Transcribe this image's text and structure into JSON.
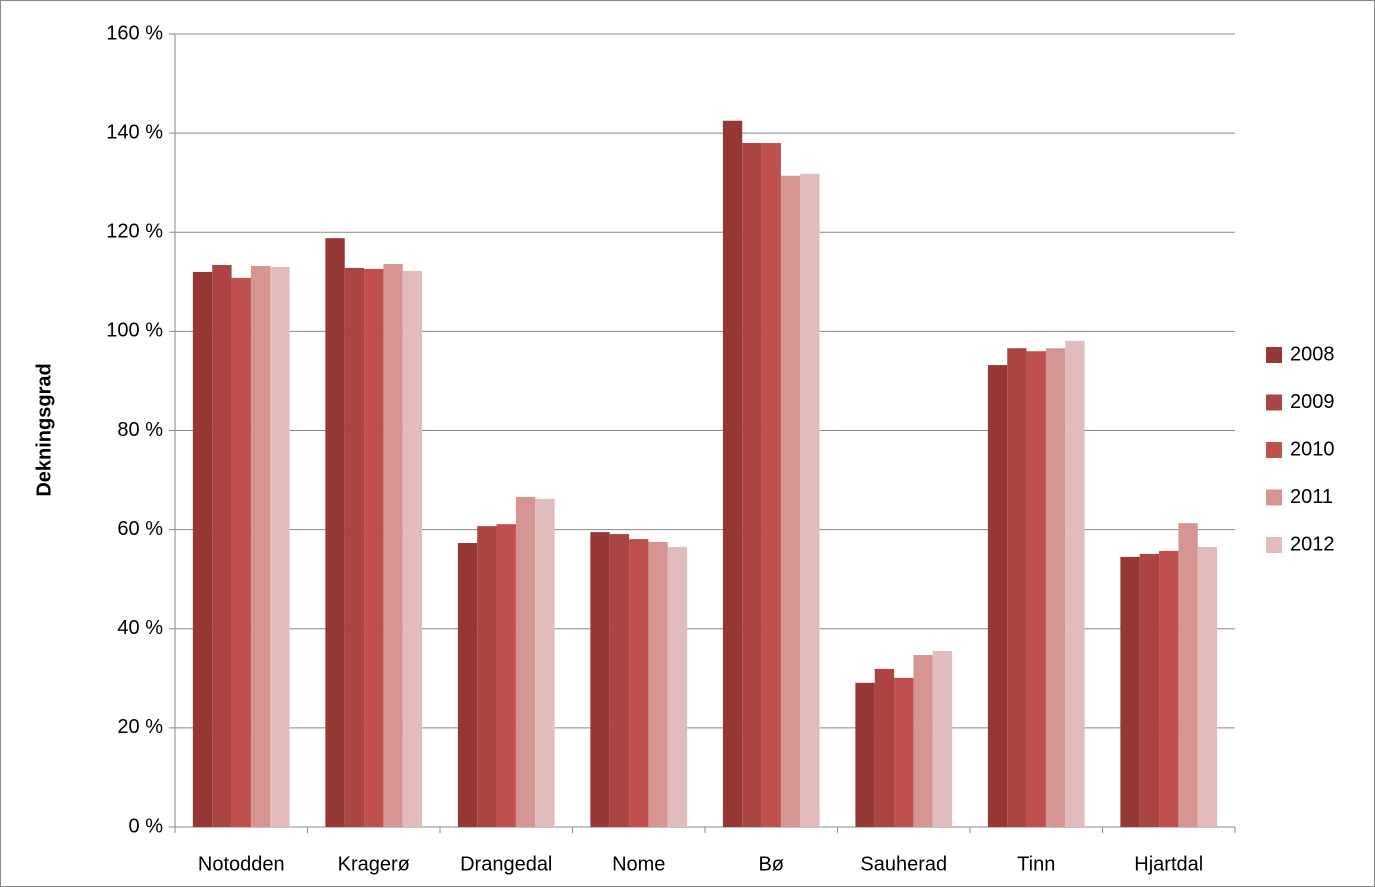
{
  "chart_data": {
    "type": "bar",
    "y_axis_label": "Dekningsgrad",
    "categories": [
      "Notodden",
      "Kragerø",
      "Drangedal",
      "Nome",
      "Bø",
      "Sauherad",
      "Tinn",
      "Hjartdal"
    ],
    "series": [
      {
        "name": "2008",
        "color": "#953735",
        "values": [
          112.0,
          118.8,
          57.3,
          59.5,
          142.5,
          29.1,
          93.2,
          54.5
        ]
      },
      {
        "name": "2009",
        "color": "#ab4543",
        "values": [
          113.4,
          112.8,
          60.7,
          59.1,
          138.0,
          31.9,
          96.6,
          55.1
        ]
      },
      {
        "name": "2010",
        "color": "#c0504d",
        "values": [
          110.8,
          112.6,
          61.1,
          58.1,
          138.0,
          30.1,
          96.0,
          55.7
        ]
      },
      {
        "name": "2011",
        "color": "#d49593",
        "values": [
          113.2,
          113.6,
          66.6,
          57.5,
          131.4,
          34.7,
          96.6,
          61.3
        ]
      },
      {
        "name": "2012",
        "color": "#e2bcbc",
        "values": [
          113.0,
          112.2,
          66.2,
          56.5,
          131.8,
          35.5,
          98.1,
          56.5
        ]
      }
    ],
    "ylim": [
      0,
      160
    ],
    "yticks": [
      {
        "value": 0,
        "label": "0 %"
      },
      {
        "value": 20,
        "label": "20 %"
      },
      {
        "value": 40,
        "label": "40 %"
      },
      {
        "value": 60,
        "label": "60 %"
      },
      {
        "value": 80,
        "label": "80 %"
      },
      {
        "value": 100,
        "label": "100 %"
      },
      {
        "value": 120,
        "label": "120 %"
      },
      {
        "value": 140,
        "label": "140 %"
      },
      {
        "value": 160,
        "label": "160 %"
      }
    ],
    "grid": true,
    "legend": "right"
  }
}
